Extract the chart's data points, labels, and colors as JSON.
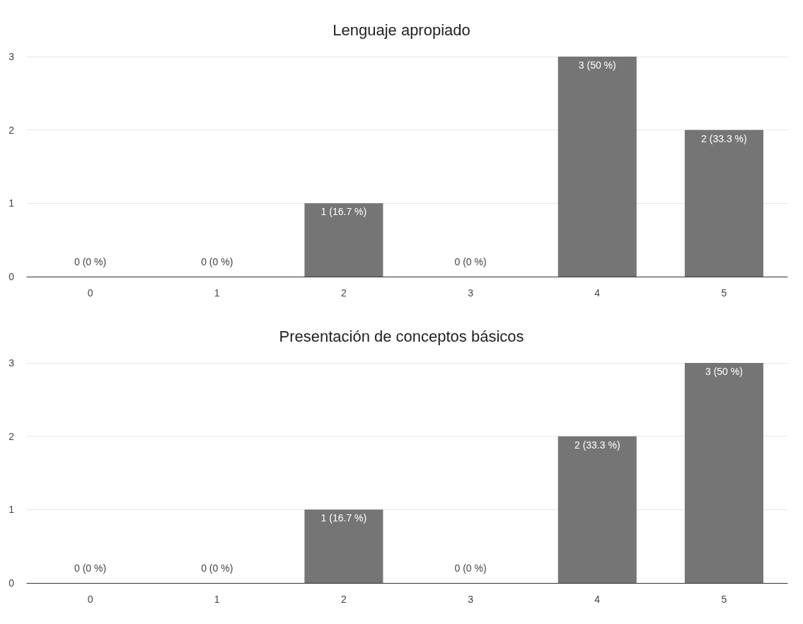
{
  "chart_data": [
    {
      "type": "bar",
      "title": "Lenguaje apropiado",
      "categories": [
        "0",
        "1",
        "2",
        "3",
        "4",
        "5"
      ],
      "values": [
        0,
        0,
        1,
        0,
        3,
        2
      ],
      "value_labels": [
        "0 (0 %)",
        "0 (0 %)",
        "1 (16.7 %)",
        "0 (0 %)",
        "3 (50 %)",
        "2 (33.3 %)"
      ],
      "color": "#757575",
      "ylim": [
        0,
        3
      ],
      "yticks": [
        0,
        1,
        2,
        3
      ],
      "grid": "y"
    },
    {
      "type": "bar",
      "title": "Presentación de conceptos básicos",
      "categories": [
        "0",
        "1",
        "2",
        "3",
        "4",
        "5"
      ],
      "values": [
        0,
        0,
        1,
        0,
        2,
        3
      ],
      "value_labels": [
        "0 (0 %)",
        "0 (0 %)",
        "1 (16.7 %)",
        "0 (0 %)",
        "2 (33.3 %)",
        "3 (50 %)"
      ],
      "color": "#757575",
      "ylim": [
        0,
        3
      ],
      "yticks": [
        0,
        1,
        2,
        3
      ],
      "grid": "y"
    }
  ]
}
